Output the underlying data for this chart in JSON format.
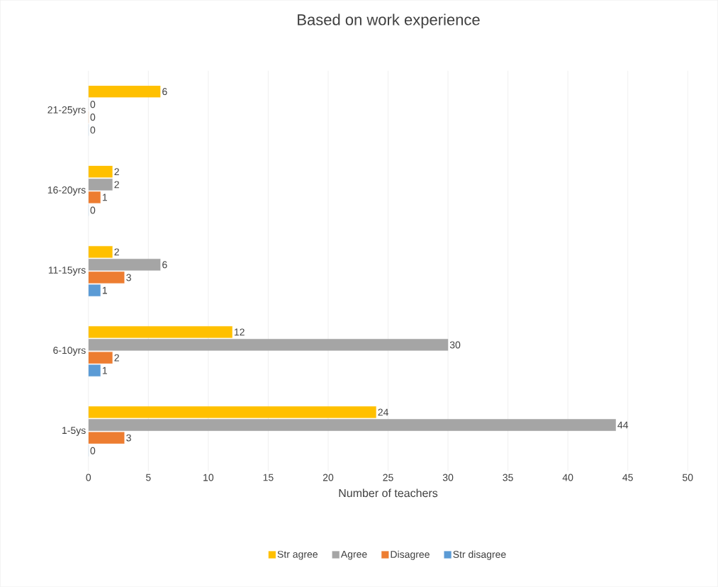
{
  "chart_data": {
    "type": "bar",
    "orientation": "horizontal",
    "title": "Based on work experience",
    "xlabel": "Number of teachers",
    "categories": [
      "21-25yrs",
      "16-20yrs",
      "11-15yrs",
      "6-10yrs",
      "1-5ys"
    ],
    "series": [
      {
        "name": "Str agree",
        "color": "#ffc000",
        "values": [
          6,
          2,
          2,
          12,
          24
        ]
      },
      {
        "name": "Agree",
        "color": "#a5a5a5",
        "values": [
          0,
          2,
          6,
          30,
          44
        ]
      },
      {
        "name": "Disagree",
        "color": "#ed7d31",
        "values": [
          0,
          1,
          3,
          2,
          3
        ]
      },
      {
        "name": "Str disagree",
        "color": "#5b9bd5",
        "values": [
          0,
          0,
          1,
          1,
          0
        ]
      }
    ],
    "xlim": [
      0,
      50
    ],
    "xticks": [
      0,
      5,
      10,
      15,
      20,
      25,
      30,
      35,
      40,
      45,
      50
    ],
    "grid": "x",
    "legend": "bottom",
    "data_labels": true
  }
}
